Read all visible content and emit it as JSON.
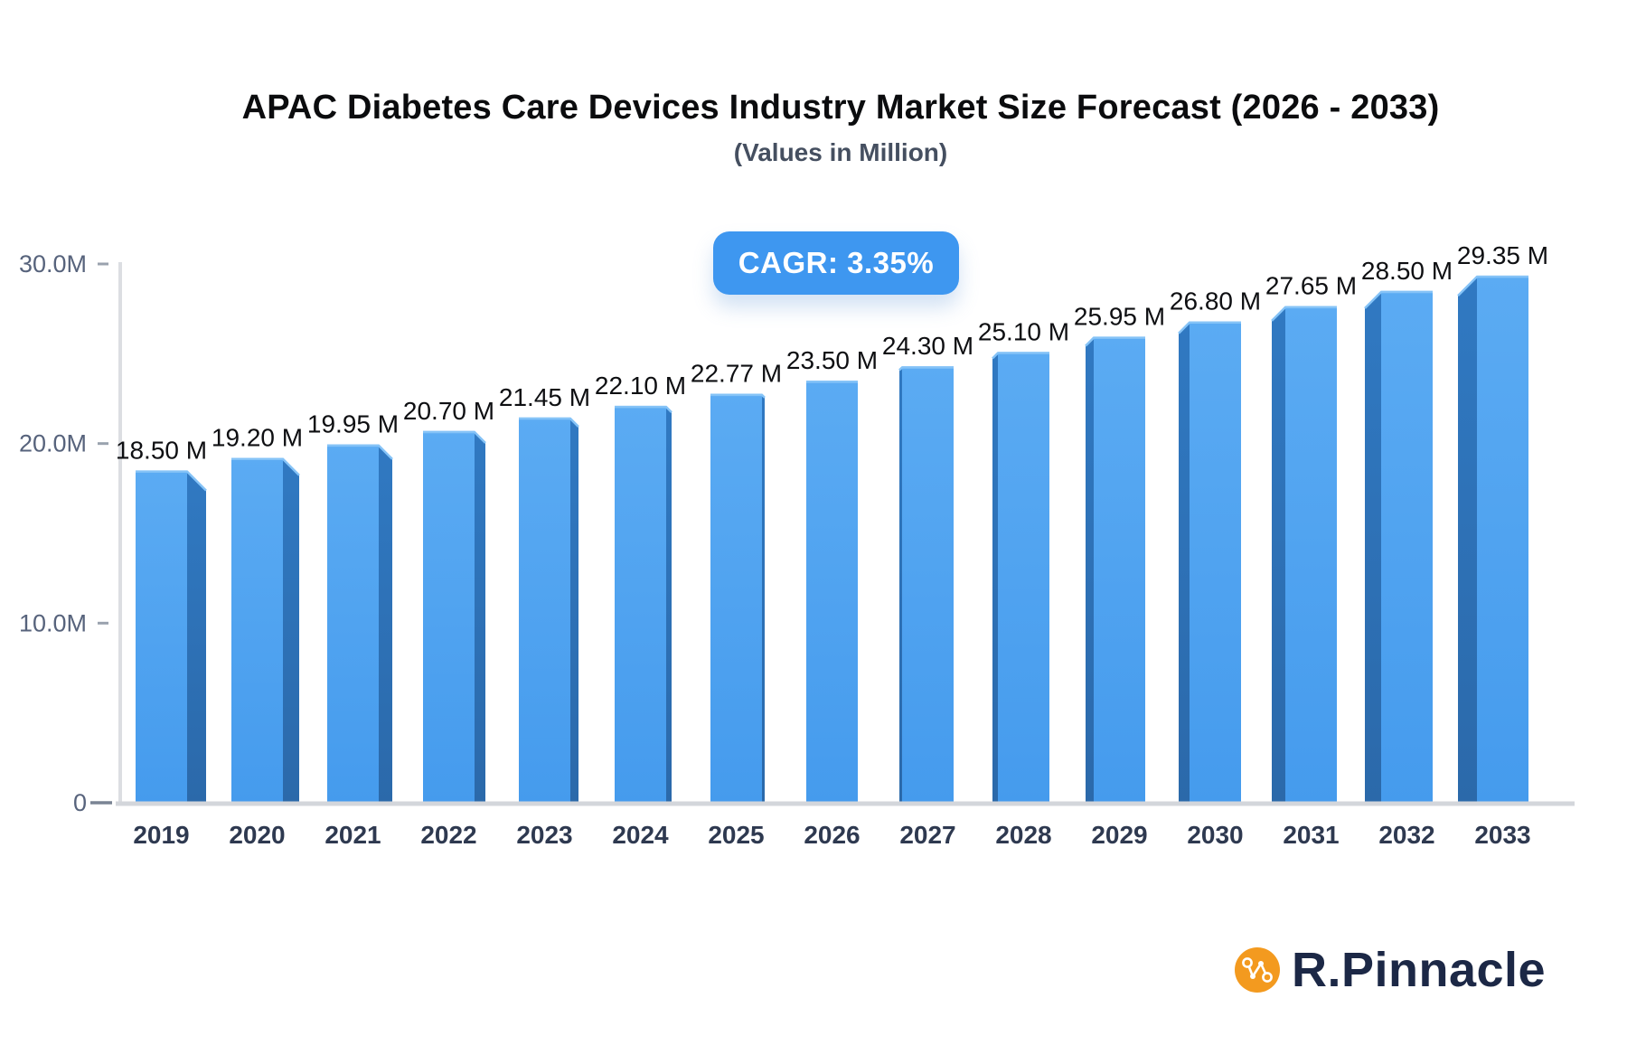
{
  "header": {
    "title": "APAC Diabetes Care Devices Industry Market Size Forecast (2026 - 2033)",
    "subtitle": "(Values in Million)"
  },
  "badge": {
    "label": "CAGR: 3.35%"
  },
  "chart_data": {
    "type": "bar",
    "title": "APAC Diabetes Care Devices Industry Market Size Forecast (2026 - 2033)",
    "subtitle": "(Values in Million)",
    "unit": "Million",
    "annotation": "CAGR: 3.35%",
    "bar_style": "3d-perspective",
    "grid": false,
    "legend": "none",
    "categories": [
      "2019",
      "2020",
      "2021",
      "2022",
      "2023",
      "2024",
      "2025",
      "2026",
      "2027",
      "2028",
      "2029",
      "2030",
      "2031",
      "2032",
      "2033"
    ],
    "values": [
      18.5,
      19.2,
      19.95,
      20.7,
      21.45,
      22.1,
      22.77,
      23.5,
      24.3,
      25.1,
      25.95,
      26.8,
      27.65,
      28.5,
      29.35
    ],
    "value_labels": [
      "18.50 M",
      "19.20 M",
      "19.95 M",
      "20.70 M",
      "21.45 M",
      "22.10 M",
      "22.77 M",
      "23.50 M",
      "24.30 M",
      "25.10 M",
      "25.95 M",
      "26.80 M",
      "27.65 M",
      "28.50 M",
      "29.35 M"
    ],
    "y_axis": {
      "min": 0,
      "max": 30,
      "ticks": [
        {
          "label": "30.0M",
          "value": 30
        },
        {
          "label": "20.0M",
          "value": 20
        },
        {
          "label": "10.0M",
          "value": 10
        },
        {
          "label": "0",
          "value": 0
        }
      ]
    }
  },
  "branding": {
    "logo_text": "R.Pinnacle",
    "logo_icon": "network-nodes-icon"
  },
  "colors": {
    "accent_blue": "#3e97f0",
    "bar_face_top": "#5babf3",
    "bar_face_bottom": "#459bed",
    "bar_side_top": "#3079c2",
    "bar_side_bottom": "#2b69aa",
    "bar_top_highlight": "#85c3f7",
    "axis_line": "#dcdee2",
    "baseline": "#d3d6db",
    "tick": "#9aa2ae",
    "tick_zero": "#7a8494",
    "y_label": "#57637c",
    "x_label": "#2e3950",
    "value_label": "#0e0f12",
    "badge_bg": "#3e97f0",
    "badge_text": "#ffffff",
    "logo_orange": "#f39a1f",
    "logo_navy": "#1c2846"
  }
}
